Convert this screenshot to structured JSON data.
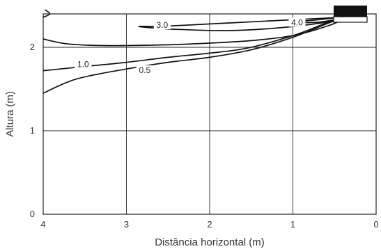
{
  "chart_data": {
    "type": "line",
    "title": "",
    "xlabel": "Distância horizontal (m)",
    "ylabel": "Altura (m)",
    "xlim": [
      4,
      0
    ],
    "ylim": [
      0,
      2.4
    ],
    "x_ticks": [
      "4",
      "3",
      "2",
      "1",
      "0"
    ],
    "y_ticks": [
      "0",
      "1",
      "2"
    ],
    "grid": true,
    "device_color": "#111111",
    "series": [
      {
        "name": "0.5",
        "points": [
          [
            4.0,
            1.45
          ],
          [
            3.6,
            1.62
          ],
          [
            3.0,
            1.74
          ],
          [
            2.5,
            1.82
          ],
          [
            2.0,
            1.88
          ],
          [
            1.5,
            1.97
          ],
          [
            1.0,
            2.12
          ],
          [
            0.6,
            2.28
          ],
          [
            0.38,
            2.36
          ]
        ]
      },
      {
        "name": "1.0",
        "points": [
          [
            4.0,
            1.72
          ],
          [
            3.5,
            1.77
          ],
          [
            3.0,
            1.82
          ],
          [
            2.5,
            1.88
          ],
          [
            2.0,
            1.93
          ],
          [
            1.55,
            1.99
          ],
          [
            1.0,
            2.14
          ],
          [
            0.6,
            2.29
          ],
          [
            0.38,
            2.36
          ]
        ]
      },
      {
        "name": "3.0",
        "points": [
          [
            0.4,
            2.36
          ],
          [
            1.0,
            2.33
          ],
          [
            1.6,
            2.3
          ],
          [
            2.2,
            2.27
          ],
          [
            2.6,
            2.25
          ],
          [
            2.85,
            2.25
          ],
          [
            2.5,
            2.22
          ],
          [
            1.8,
            2.2
          ],
          [
            1.2,
            2.23
          ],
          [
            0.6,
            2.3
          ],
          [
            0.4,
            2.35
          ]
        ]
      },
      {
        "name": "4.0",
        "points": [
          [
            0.42,
            2.36
          ],
          [
            0.7,
            2.33
          ],
          [
            1.0,
            2.3
          ],
          [
            0.7,
            2.3
          ],
          [
            0.44,
            2.34
          ]
        ]
      },
      {
        "name": "",
        "points": [
          [
            4.0,
            2.1
          ],
          [
            3.7,
            2.04
          ],
          [
            3.2,
            2.02
          ],
          [
            2.5,
            2.03
          ],
          [
            2.0,
            2.05
          ],
          [
            1.5,
            2.08
          ],
          [
            1.0,
            2.14
          ],
          [
            0.6,
            2.25
          ],
          [
            0.4,
            2.33
          ]
        ]
      },
      {
        "name": "",
        "points": [
          [
            3.98,
            2.45
          ],
          [
            3.92,
            2.4
          ],
          [
            4.0,
            2.36
          ]
        ]
      }
    ],
    "labels": [
      {
        "text": "0.5",
        "x": 2.78,
        "y": 1.71
      },
      {
        "text": "1.0",
        "x": 3.52,
        "y": 1.78
      },
      {
        "text": "3.0",
        "x": 2.57,
        "y": 2.25
      },
      {
        "text": "4.0",
        "x": 0.95,
        "y": 2.28
      }
    ]
  }
}
